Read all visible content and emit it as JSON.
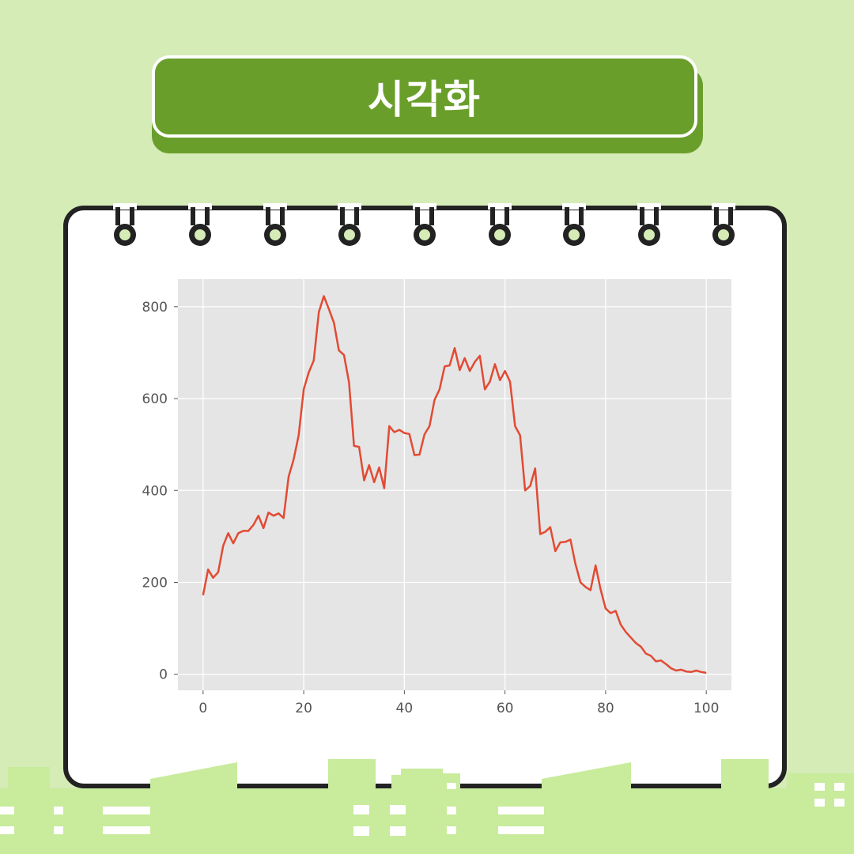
{
  "header": {
    "title": "시각화"
  },
  "colors": {
    "background": "#d5ecb7",
    "banner": "#6a9e2b",
    "line": "#e24a33",
    "plot_bg": "#e5e5e5",
    "card_border": "#222222"
  },
  "chart_data": {
    "type": "line",
    "title": "",
    "xlabel": "",
    "ylabel": "",
    "xlim": [
      -5,
      105
    ],
    "ylim": [
      -35,
      860
    ],
    "xticks": [
      0,
      20,
      40,
      60,
      80,
      100
    ],
    "yticks": [
      0,
      200,
      400,
      600,
      800
    ],
    "grid": true,
    "series": [
      {
        "values": [
          [
            0,
            172
          ],
          [
            1,
            228
          ],
          [
            2,
            210
          ],
          [
            3,
            222
          ],
          [
            4,
            280
          ],
          [
            5,
            307
          ],
          [
            6,
            285
          ],
          [
            7,
            307
          ],
          [
            8,
            312
          ],
          [
            9,
            312
          ],
          [
            10,
            325
          ],
          [
            11,
            345
          ],
          [
            12,
            318
          ],
          [
            13,
            352
          ],
          [
            14,
            345
          ],
          [
            15,
            350
          ],
          [
            16,
            340
          ],
          [
            17,
            430
          ],
          [
            18,
            468
          ],
          [
            19,
            520
          ],
          [
            20,
            620
          ],
          [
            21,
            657
          ],
          [
            22,
            683
          ],
          [
            23,
            788
          ],
          [
            24,
            823
          ],
          [
            25,
            795
          ],
          [
            26,
            765
          ],
          [
            27,
            705
          ],
          [
            28,
            695
          ],
          [
            29,
            635
          ],
          [
            30,
            497
          ],
          [
            31,
            495
          ],
          [
            32,
            422
          ],
          [
            33,
            455
          ],
          [
            34,
            418
          ],
          [
            35,
            450
          ],
          [
            36,
            405
          ],
          [
            37,
            540
          ],
          [
            38,
            527
          ],
          [
            39,
            532
          ],
          [
            40,
            525
          ],
          [
            41,
            523
          ],
          [
            42,
            477
          ],
          [
            43,
            478
          ],
          [
            44,
            522
          ],
          [
            45,
            540
          ],
          [
            46,
            597
          ],
          [
            47,
            620
          ],
          [
            48,
            670
          ],
          [
            49,
            672
          ],
          [
            50,
            710
          ],
          [
            51,
            662
          ],
          [
            52,
            688
          ],
          [
            53,
            660
          ],
          [
            54,
            680
          ],
          [
            55,
            693
          ],
          [
            56,
            620
          ],
          [
            57,
            637
          ],
          [
            58,
            675
          ],
          [
            59,
            640
          ],
          [
            60,
            660
          ],
          [
            61,
            637
          ],
          [
            62,
            540
          ],
          [
            63,
            520
          ],
          [
            64,
            400
          ],
          [
            65,
            410
          ],
          [
            66,
            448
          ],
          [
            67,
            305
          ],
          [
            68,
            310
          ],
          [
            69,
            320
          ],
          [
            70,
            268
          ],
          [
            71,
            287
          ],
          [
            72,
            288
          ],
          [
            73,
            293
          ],
          [
            74,
            240
          ],
          [
            75,
            200
          ],
          [
            76,
            190
          ],
          [
            77,
            183
          ],
          [
            78,
            237
          ],
          [
            79,
            185
          ],
          [
            80,
            143
          ],
          [
            81,
            133
          ],
          [
            82,
            138
          ],
          [
            83,
            108
          ],
          [
            84,
            92
          ],
          [
            85,
            80
          ],
          [
            86,
            68
          ],
          [
            87,
            60
          ],
          [
            88,
            45
          ],
          [
            89,
            40
          ],
          [
            90,
            28
          ],
          [
            91,
            30
          ],
          [
            92,
            22
          ],
          [
            93,
            13
          ],
          [
            94,
            8
          ],
          [
            95,
            10
          ],
          [
            96,
            6
          ],
          [
            97,
            5
          ],
          [
            98,
            8
          ],
          [
            99,
            5
          ],
          [
            100,
            3
          ]
        ]
      }
    ]
  }
}
